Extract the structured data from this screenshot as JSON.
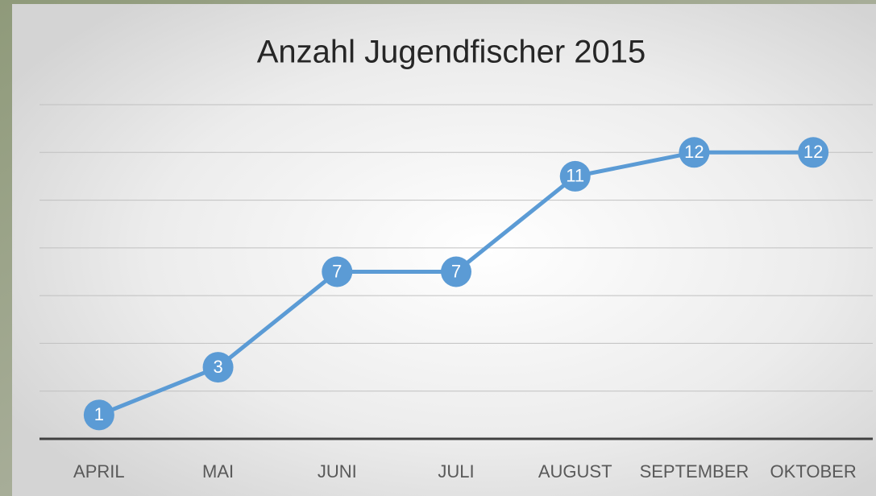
{
  "chart_data": {
    "type": "line",
    "title": "Anzahl Jugendfischer 2015",
    "categories": [
      "APRIL",
      "MAI",
      "JUNI",
      "JULI",
      "AUGUST",
      "SEPTEMBER",
      "OKTOBER"
    ],
    "values": [
      1,
      3,
      7,
      7,
      11,
      12,
      12
    ],
    "color": "#5b9bd5",
    "ylim": [
      0,
      14
    ],
    "yticks": [
      0,
      2,
      4,
      6,
      8,
      10,
      12,
      14
    ],
    "grid": true
  }
}
